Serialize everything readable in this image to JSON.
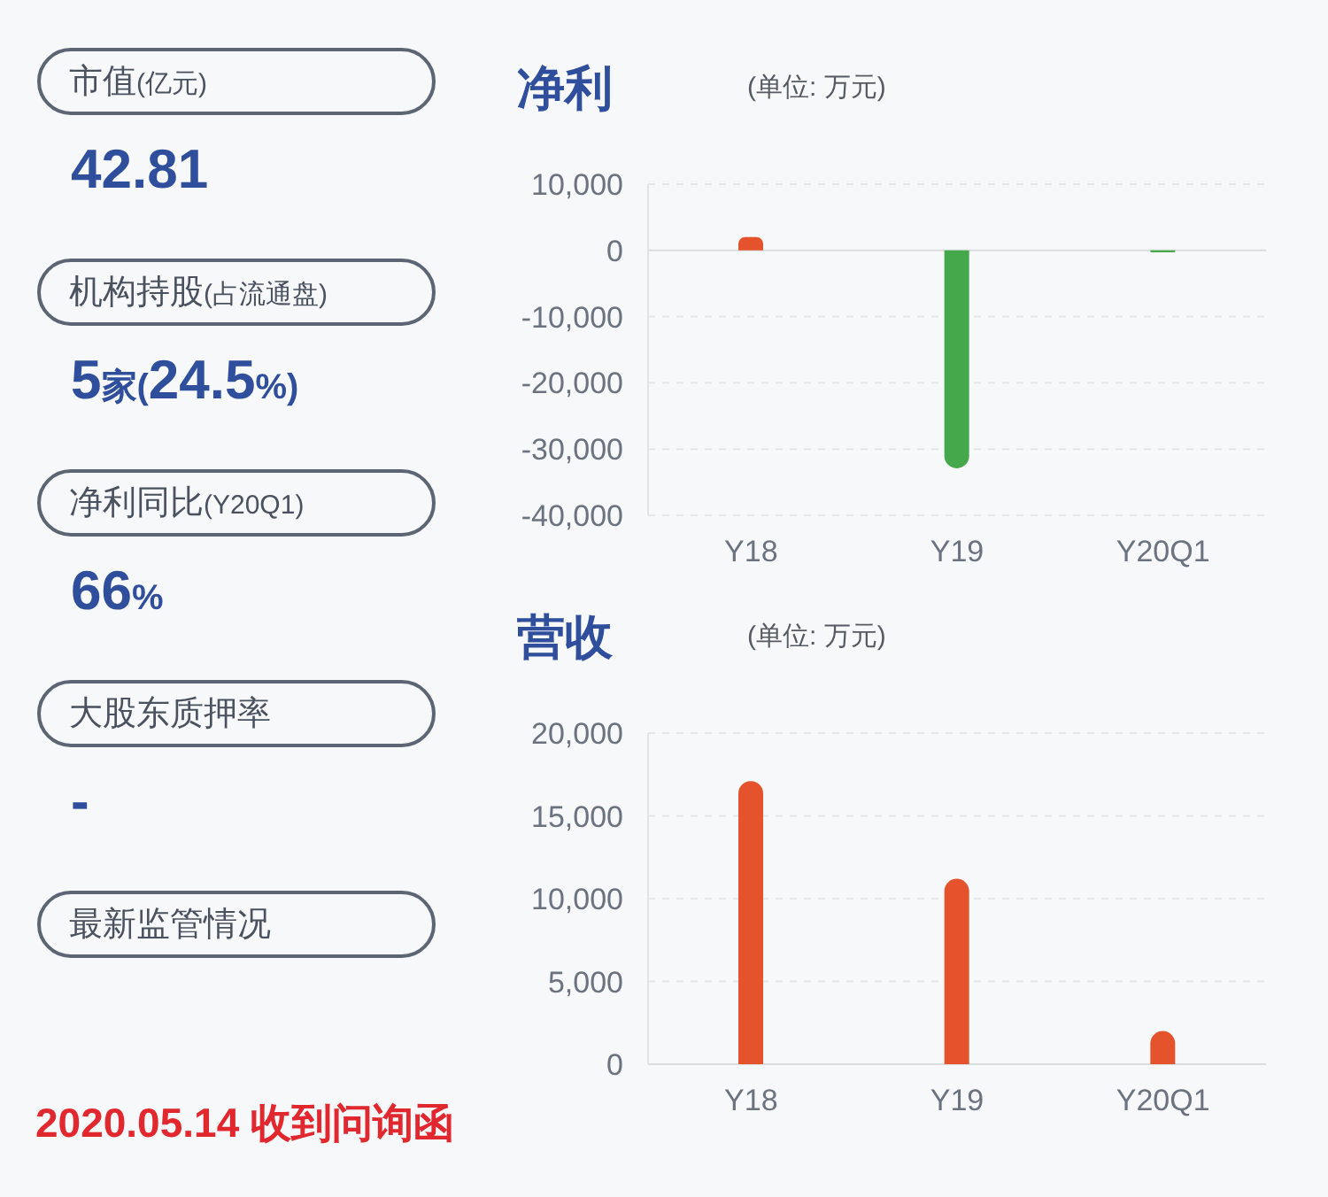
{
  "chart_data": [
    {
      "type": "other",
      "annotations": [
        "市值(亿元)",
        "42.81",
        "机构持股(占流通盘)",
        "5家(24.5%)",
        "净利同比(Y20Q1)",
        "66%",
        "大股东质押率",
        "-",
        "最新监管情况",
        "2020.05.14 收到问询函"
      ]
    },
    {
      "type": "bar",
      "title": "净利",
      "subtitle": "(单位: 万元)",
      "categories": [
        "Y18",
        "Y19",
        "Y20Q1"
      ],
      "values": [
        2000,
        -32900,
        -300
      ],
      "colors": [
        "#e4532b",
        "#45a84b",
        "#45a84b"
      ],
      "ylim": [
        -40000,
        10000
      ],
      "yticks": [
        {
          "value": -40000,
          "label": "-40,000"
        },
        {
          "value": -30000,
          "label": "-30,000"
        },
        {
          "value": -20000,
          "label": "-20,000"
        },
        {
          "value": -10000,
          "label": "-10,000"
        },
        0,
        {
          "value": 10000,
          "label": "10,000"
        }
      ],
      "grid": "y"
    },
    {
      "type": "bar",
      "title": "营收",
      "subtitle": "(单位: 万元)",
      "categories": [
        "Y18",
        "Y19",
        "Y20Q1"
      ],
      "values": [
        17100,
        11200,
        2000
      ],
      "color": "#e4532b",
      "ylim": [
        0,
        20000
      ],
      "yticks": [
        0,
        {
          "value": 5000,
          "label": "5,000"
        },
        {
          "value": 10000,
          "label": "10,000"
        },
        {
          "value": 15000,
          "label": "15,000"
        },
        {
          "value": 20000,
          "label": "20,000"
        }
      ],
      "grid": "y"
    }
  ]
}
